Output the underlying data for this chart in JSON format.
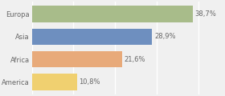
{
  "categories": [
    "Europa",
    "Asia",
    "Africa",
    "America"
  ],
  "values": [
    38.7,
    28.9,
    21.6,
    10.8
  ],
  "labels": [
    "38,7%",
    "28,9%",
    "21,6%",
    "10,8%"
  ],
  "bar_colors": [
    "#a8bc8a",
    "#6e8fbf",
    "#e8aa7a",
    "#f0d070"
  ],
  "background_color": "#f0f0f0",
  "xlim": [
    0,
    46
  ],
  "bar_height": 0.72,
  "label_fontsize": 6.0,
  "category_fontsize": 6.0,
  "grid_color": "#ffffff",
  "grid_linewidth": 1.0,
  "text_color": "#666666"
}
